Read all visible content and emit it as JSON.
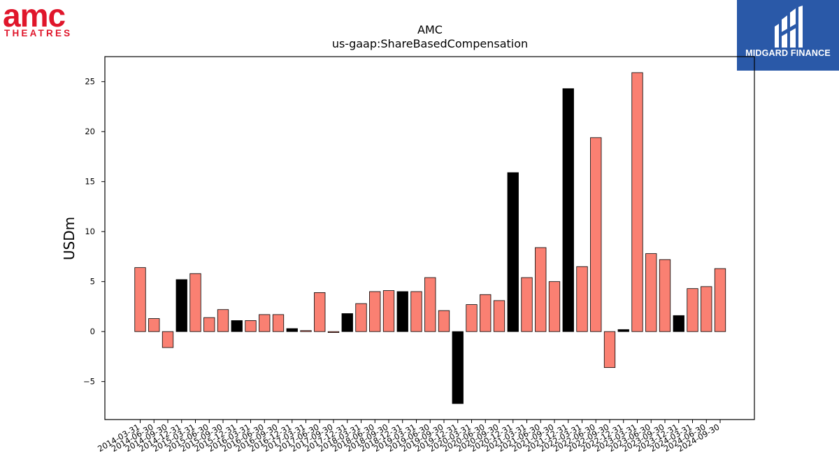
{
  "logos": {
    "left_brand": {
      "name": "AMC THEATRES",
      "word": "amc",
      "sub": "THEATRES",
      "color": "#e0162b"
    },
    "right_brand": {
      "name": "MIDGARD FINANCE",
      "text": "MIDGARD FINANCE",
      "background": "#2a59a8"
    }
  },
  "chart_data": {
    "type": "bar",
    "title": "AMC",
    "subtitle": "us-gaap:ShareBasedCompensation",
    "xlabel": "",
    "ylabel": "USDm",
    "ylim": [
      -8.8,
      27.5
    ],
    "yticks": [
      -5,
      0,
      5,
      10,
      15,
      20,
      25
    ],
    "ytick_labels": [
      "−5",
      "0",
      "5",
      "10",
      "15",
      "20",
      "25"
    ],
    "grid": false,
    "colors": {
      "quarter": "#fa8072",
      "year_end": "#000000",
      "edge": "#000000"
    },
    "categories": [
      "2014-03-31",
      "2014-06-30",
      "2014-09-30",
      "2014-12-31",
      "2015-03-31",
      "2015-06-30",
      "2015-09-30",
      "2015-12-31",
      "2016-03-31",
      "2016-06-30",
      "2016-09-30",
      "2016-12-31",
      "2017-03-31",
      "2017-06-30",
      "2017-09-30",
      "2017-12-31",
      "2018-03-31",
      "2018-06-30",
      "2018-09-30",
      "2018-12-31",
      "2019-03-31",
      "2019-06-30",
      "2019-09-30",
      "2019-12-31",
      "2020-03-31",
      "2020-06-30",
      "2020-09-30",
      "2020-12-31",
      "2021-03-31",
      "2021-06-30",
      "2021-09-30",
      "2021-12-31",
      "2022-03-31",
      "2022-06-30",
      "2022-09-30",
      "2022-12-31",
      "2023-03-31",
      "2023-06-30",
      "2023-09-30",
      "2023-12-31",
      "2024-03-31",
      "2024-06-30",
      "2024-09-30"
    ],
    "values": [
      6.4,
      1.3,
      -1.6,
      5.2,
      5.8,
      1.4,
      2.2,
      1.1,
      1.1,
      1.7,
      1.7,
      0.3,
      0.1,
      3.9,
      -0.1,
      1.8,
      2.8,
      4.0,
      4.1,
      4.0,
      4.0,
      5.4,
      2.1,
      -7.2,
      2.7,
      3.7,
      3.1,
      15.9,
      5.4,
      8.4,
      5.0,
      24.3,
      6.5,
      19.4,
      -3.6,
      0.2,
      25.9,
      7.8,
      7.2,
      1.6,
      4.3,
      4.5,
      6.3
    ],
    "highlight_year_end": [
      false,
      false,
      false,
      true,
      false,
      false,
      false,
      true,
      false,
      false,
      false,
      true,
      false,
      false,
      false,
      true,
      false,
      false,
      false,
      true,
      false,
      false,
      false,
      true,
      false,
      false,
      false,
      true,
      false,
      false,
      false,
      true,
      false,
      false,
      false,
      true,
      false,
      false,
      false,
      true,
      false,
      false,
      false
    ]
  }
}
